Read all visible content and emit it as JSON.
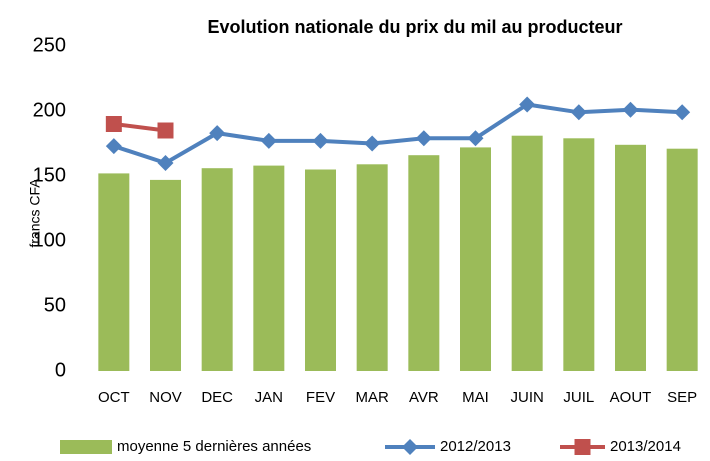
{
  "chart_data": {
    "type": "bar",
    "title": "Evolution nationale du prix du mil au producteur",
    "y_label": "francs CFA",
    "categories": [
      "OCT",
      "NOV",
      "DEC",
      "JAN",
      "FEV",
      "MAR",
      "AVR",
      "MAI",
      "JUIN",
      "JUIL",
      "AOUT",
      "SEP"
    ],
    "series": [
      {
        "name": "moyenne 5 dernières années",
        "type": "bar",
        "color": "#9bbb59",
        "values": [
          152,
          147,
          156,
          158,
          155,
          159,
          166,
          172,
          181,
          179,
          174,
          171
        ]
      },
      {
        "name": "2012/2013",
        "type": "line",
        "marker": "diamond",
        "color": "#4f81bd",
        "values": [
          173,
          160,
          183,
          177,
          177,
          175,
          179,
          179,
          205,
          199,
          201,
          199
        ]
      },
      {
        "name": "2013/2014",
        "type": "line",
        "marker": "square",
        "color": "#c0504d",
        "values": [
          190,
          185,
          null,
          null,
          null,
          null,
          null,
          null,
          null,
          null,
          null,
          null
        ]
      }
    ],
    "ylim": [
      0,
      250
    ],
    "yticks": [
      0,
      50,
      100,
      150,
      200,
      250
    ],
    "grid": false,
    "legend": "bottom"
  }
}
